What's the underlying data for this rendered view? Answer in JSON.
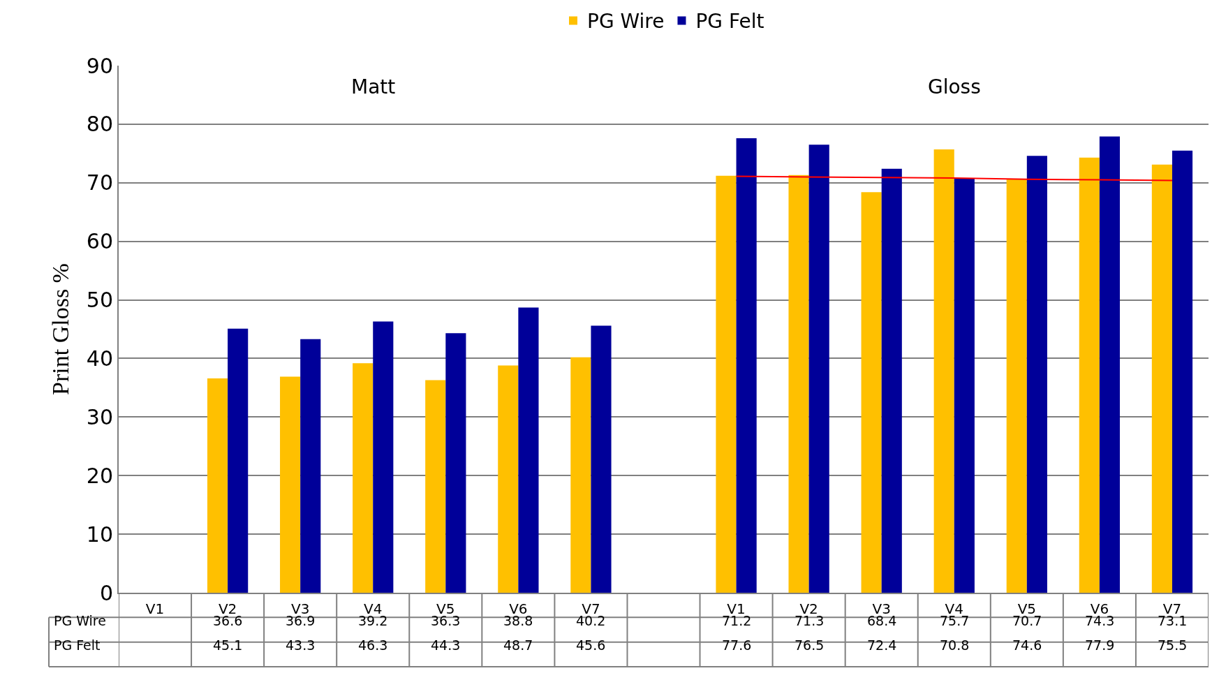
{
  "chart_data": {
    "type": "bar",
    "ylabel": "Print Gloss %",
    "categories": [
      "V1",
      "V2",
      "V3",
      "V4",
      "V5",
      "V6",
      "V7",
      null,
      "V1",
      "V2",
      "V3",
      "V4",
      "V5",
      "V6",
      "V7"
    ],
    "series": [
      {
        "name": "PG Wire",
        "color": "#ffc000",
        "values": [
          null,
          36.6,
          36.9,
          39.2,
          36.3,
          38.8,
          40.2,
          null,
          71.2,
          71.3,
          68.4,
          75.7,
          70.7,
          74.3,
          73.1
        ],
        "value_labels": [
          null,
          "36.6",
          "36.9",
          "39.2",
          "36.3",
          "38.8",
          "40.2",
          null,
          "71.2",
          "71.3",
          "68.4",
          "75.7",
          "70.7",
          "74.3",
          "73.1"
        ]
      },
      {
        "name": "PG Felt",
        "color": "#000099",
        "values": [
          null,
          45.1,
          43.3,
          46.3,
          44.3,
          48.7,
          45.6,
          null,
          77.6,
          76.5,
          72.4,
          70.8,
          74.6,
          77.9,
          75.5
        ],
        "value_labels": [
          null,
          "45.1",
          "43.3",
          "46.3",
          "44.3",
          "48.7",
          "45.6",
          null,
          "77.6",
          "76.5",
          "72.4",
          "70.8",
          "74.6",
          "77.9",
          "75.5"
        ]
      },
      {
        "type": "line",
        "color": "#ff0000",
        "values": [
          null,
          null,
          null,
          null,
          null,
          null,
          null,
          null,
          71.1,
          71.0,
          70.9,
          70.8,
          70.6,
          70.5,
          70.4
        ]
      }
    ],
    "annotations": [
      "Matt",
      "Gloss"
    ],
    "ylim": [
      0,
      90
    ],
    "yticks": [
      0,
      10,
      20,
      30,
      40,
      50,
      60,
      70,
      80,
      90
    ],
    "grid": "y",
    "legend": "top"
  }
}
